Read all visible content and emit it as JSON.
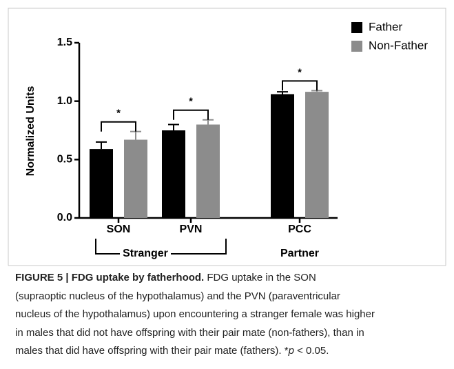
{
  "chart_data": {
    "type": "bar",
    "y_label": "Normalized Units",
    "categories": [
      "SON",
      "PVN",
      "PCC"
    ],
    "groups": [
      {
        "label": "Stranger"
      },
      {
        "label": "Partner"
      }
    ],
    "series": [
      {
        "name": "Father",
        "color": "#000000",
        "values": [
          0.59,
          0.75,
          1.06
        ],
        "errors": [
          0.06,
          0.05,
          0.02
        ]
      },
      {
        "name": "Non-Father",
        "color": "#8c8c8c",
        "values": [
          0.67,
          0.8,
          1.08
        ],
        "errors": [
          0.07,
          0.04,
          0.01
        ]
      }
    ],
    "significance": [
      "*",
      "*",
      "*"
    ],
    "ylim": [
      0,
      1.5
    ],
    "yticks": [
      {
        "value": 0,
        "label": "0.0"
      },
      0.5,
      {
        "value": 1,
        "label": "1.0"
      },
      1.5
    ],
    "legend": "top-right"
  },
  "caption": {
    "lines": [
      [
        {
          "text": "FIGURE 5 | FDG uptake by fatherhood.",
          "style": "bold"
        },
        {
          "text": " FDG uptake in the SON",
          "style": "normal"
        }
      ],
      [
        {
          "text": "(supraoptic nucleus of the hypothalamus) and the PVN (paraventricular",
          "style": "normal"
        }
      ],
      [
        {
          "text": "nucleus of the hypothalamus) upon encountering a stranger female was higher",
          "style": "normal"
        }
      ],
      [
        {
          "text": "in males that did not have offspring with their pair mate (non-fathers), than in",
          "style": "normal"
        }
      ],
      [
        {
          "text": "males that did have offspring with their pair mate (fathers). *",
          "style": "normal"
        },
        {
          "text": "p",
          "style": "italic"
        },
        {
          "text": " < 0.05.",
          "style": "normal"
        }
      ]
    ]
  }
}
